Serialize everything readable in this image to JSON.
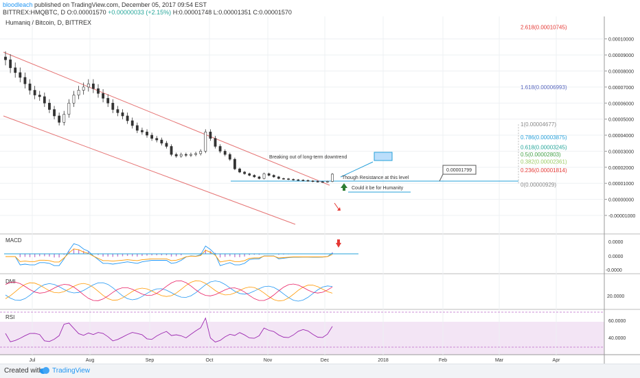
{
  "header": {
    "author": "bloodleach",
    "published": " published on TradingView.com, December 05, 2017 09:54 EST",
    "symbol_line": "BITTREX:HMQBTC, D",
    "o": "O:0.00001570",
    "chg": "+0.00000033 (+2.15%)",
    "h": "H:0.00001748",
    "l": "L:0.00001351",
    "c": "C:0.00001570"
  },
  "footer": {
    "created": "Created with",
    "brand": "TradingView"
  },
  "colors": {
    "up": "#26a69a",
    "down": "#ef5350",
    "candle": "#333333",
    "channel": "#e57373",
    "fib236": "#e53935",
    "fib382": "#9ccc65",
    "fib5": "#43a047",
    "fib618": "#26a69a",
    "fib786": "#26a0da",
    "fib1618": "#5c6bc0",
    "rsi_fill": "#f3e5f5",
    "rsi_line": "#9c27b0"
  },
  "chart_data": {
    "type": "line",
    "title": "Humaniq / Bitcoin, D, BITTREX",
    "x_labels": [
      "Jul",
      "Aug",
      "Sep",
      "Oct",
      "Nov",
      "Dec",
      "2018",
      "Feb",
      "Mar",
      "Apr"
    ],
    "price_axis": {
      "ticks": [
        "0.00010000",
        "0.00009000",
        "0.00008000",
        "0.00007000",
        "0.00006000",
        "0.00005000",
        "0.00004000",
        "0.00003000",
        "0.00002000",
        "0.00001000",
        "0.00000000",
        "-0.00001000"
      ],
      "ylim": [
        -1e-05,
        0.000105
      ]
    },
    "series": [
      {
        "values": [
          8.7e-05,
          8.2e-05,
          7.9e-05,
          7.6e-05,
          7.2e-05,
          6.8e-05,
          6.5e-05,
          6.4e-05,
          6e-05,
          5.6e-05,
          5.2e-05,
          4.8e-05,
          5.3e-05,
          6e-05,
          6.5e-05,
          6.8e-05,
          7e-05,
          7.2e-05,
          6.9e-05,
          6.6e-05,
          6.3e-05,
          6e-05,
          5.6e-05,
          5.4e-05,
          5.2e-05,
          4.9e-05,
          4.6e-05,
          4.3e-05,
          4.2e-05,
          4e-05,
          3.8e-05,
          3.7e-05,
          3.5e-05,
          3.3e-05,
          2.8e-05,
          2.7e-05,
          2.8e-05,
          2.75e-05,
          2.8e-05,
          2.85e-05,
          3e-05,
          4.2e-05,
          3.8e-05,
          3.3e-05,
          3e-05,
          2.8e-05,
          2.5e-05,
          1.9e-05,
          1.7e-05,
          1.6e-05,
          1.5e-05,
          1.4e-05,
          1.3e-05,
          1.6e-05,
          1.5e-05,
          1.4e-05,
          1.3e-05,
          1.28e-05,
          1.25e-05,
          1.22e-05,
          1.2e-05,
          1.18e-05,
          1.15e-05,
          1.12e-05,
          1.1e-05,
          1.08e-05,
          1.12e-05,
          1.57e-05
        ]
      }
    ],
    "fib_levels": [
      {
        "label": "2.618(0.00010745)",
        "value": 0.00010745
      },
      {
        "label": "1.618(0.00006993)",
        "value": 6.993e-05
      },
      {
        "label": "1(0.00004677)",
        "value": 4.677e-05
      },
      {
        "label": "0.786(0.00003875)",
        "value": 3.875e-05
      },
      {
        "label": "0.618(0.00003245)",
        "value": 3.245e-05
      },
      {
        "label": "0.5(0.00002803)",
        "value": 2.803e-05
      },
      {
        "label": "0.382(0.00002361)",
        "value": 2.361e-05
      },
      {
        "label": "0.236(0.00001814)",
        "value": 1.814e-05
      },
      {
        "label": "0(0.00000929)",
        "value": 9.29e-06
      }
    ],
    "annotations": {
      "breakout": "Breaking out of long-term downtrend",
      "resistance": "Though Resistance at this level",
      "humanity": "Could it be for Humanity",
      "price_callout": "0.00001799",
      "resistance_value": 1.799e-05
    },
    "macd": {
      "title": "MACD",
      "ticks": [
        "0.0000",
        "0.0000",
        "-0.0000"
      ]
    },
    "dmi": {
      "title": "DMI",
      "ticks": [
        "20.0000"
      ]
    },
    "rsi": {
      "title": "RSI",
      "ticks": [
        "60.0000",
        "40.0000"
      ],
      "upper": 70,
      "lower": 30
    }
  }
}
